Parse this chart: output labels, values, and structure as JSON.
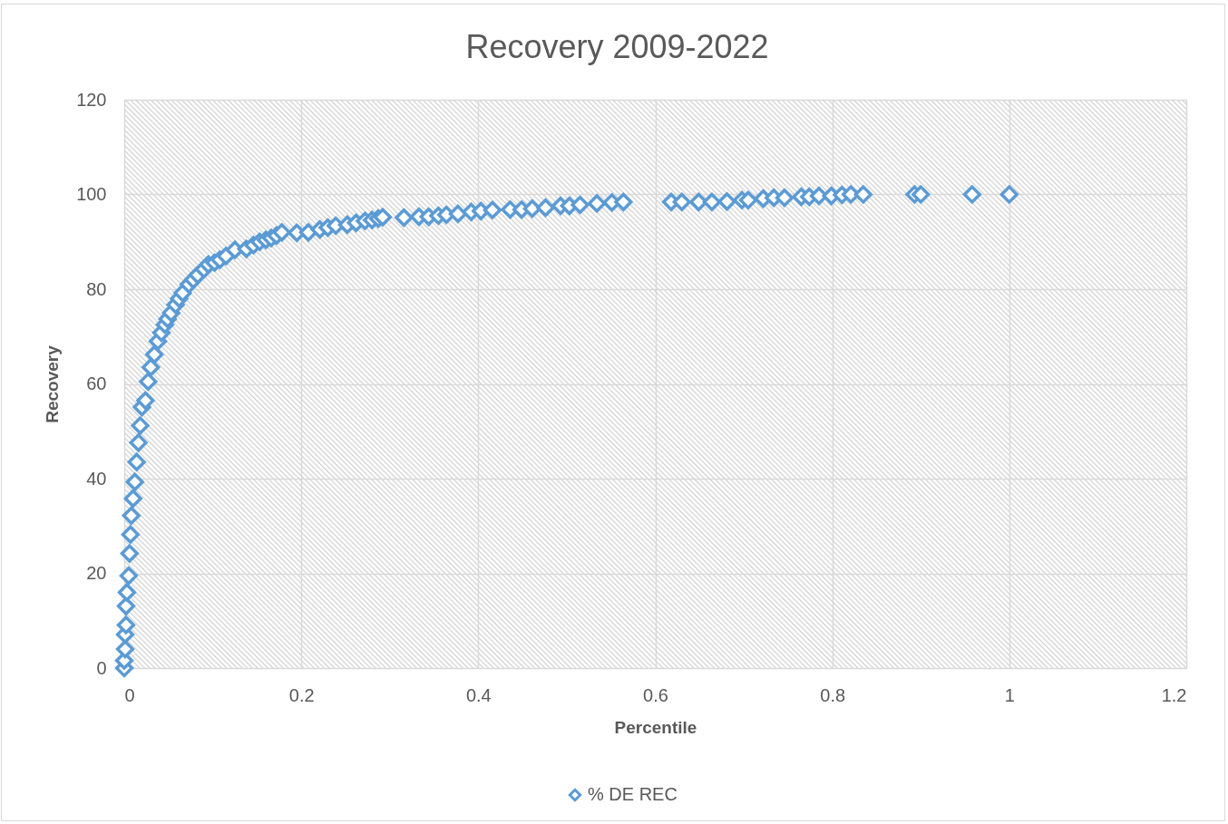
{
  "chart_data": {
    "type": "scatter",
    "title": "Recovery 2009-2022",
    "xlabel": "Percentile",
    "ylabel": "Recovery",
    "x": [
      0,
      0,
      0.001,
      0.001,
      0.002,
      0.002,
      0.003,
      0.005,
      0.006,
      0.007,
      0.008,
      0.01,
      0.012,
      0.014,
      0.016,
      0.018,
      0.02,
      0.024,
      0.027,
      0.03,
      0.034,
      0.038,
      0.042,
      0.046,
      0.049,
      0.053,
      0.058,
      0.062,
      0.066,
      0.073,
      0.078,
      0.083,
      0.09,
      0.095,
      0.102,
      0.108,
      0.115,
      0.125,
      0.138,
      0.146,
      0.153,
      0.16,
      0.166,
      0.172,
      0.178,
      0.195,
      0.208,
      0.221,
      0.23,
      0.239,
      0.252,
      0.262,
      0.272,
      0.28,
      0.287,
      0.292,
      0.316,
      0.333,
      0.344,
      0.355,
      0.364,
      0.377,
      0.392,
      0.403,
      0.416,
      0.436,
      0.449,
      0.461,
      0.476,
      0.493,
      0.503,
      0.515,
      0.534,
      0.551,
      0.564,
      0.618,
      0.63,
      0.649,
      0.664,
      0.681,
      0.698,
      0.705,
      0.722,
      0.734,
      0.746,
      0.765,
      0.774,
      0.785,
      0.799,
      0.811,
      0.821,
      0.835,
      0.893,
      0.9,
      0.958,
      1.0
    ],
    "series": [
      {
        "name": "% DE REC",
        "color": "#5b9bd5",
        "values": [
          0,
          1.6,
          4.0,
          7.1,
          9.1,
          13.1,
          16.0,
          19.5,
          24.2,
          28.2,
          32.2,
          35.8,
          39.3,
          43.5,
          47.6,
          51.2,
          55.1,
          56.5,
          60.5,
          63.5,
          66.2,
          69.0,
          70.8,
          72.5,
          73.7,
          75.0,
          76.7,
          78.0,
          79.2,
          81.0,
          82.0,
          83.0,
          84.2,
          85.2,
          85.6,
          86.2,
          87.0,
          88.3,
          88.5,
          89.3,
          90.0,
          90.4,
          90.8,
          91.3,
          92.0,
          91.9,
          92.0,
          92.6,
          93.0,
          93.4,
          93.6,
          94.0,
          94.4,
          94.6,
          94.9,
          95.2,
          95.1,
          95.3,
          95.3,
          95.5,
          95.7,
          95.9,
          96.3,
          96.5,
          96.7,
          96.8,
          96.8,
          97.0,
          97.2,
          97.6,
          97.6,
          97.8,
          98.1,
          98.3,
          98.4,
          98.4,
          98.4,
          98.4,
          98.4,
          98.5,
          98.8,
          98.8,
          99.1,
          99.3,
          99.3,
          99.5,
          99.5,
          99.7,
          99.7,
          99.9,
          100,
          100,
          100,
          100,
          100,
          100
        ]
      }
    ],
    "xlim": [
      0,
      1.2
    ],
    "xticks": [
      0,
      0.2,
      0.4,
      0.6,
      0.8,
      1,
      1.2
    ],
    "ylim": [
      0,
      120
    ],
    "yticks": [
      0,
      20,
      40,
      60,
      80,
      100,
      120
    ],
    "grid": true,
    "legend": "bottom",
    "marker": "diamond"
  }
}
